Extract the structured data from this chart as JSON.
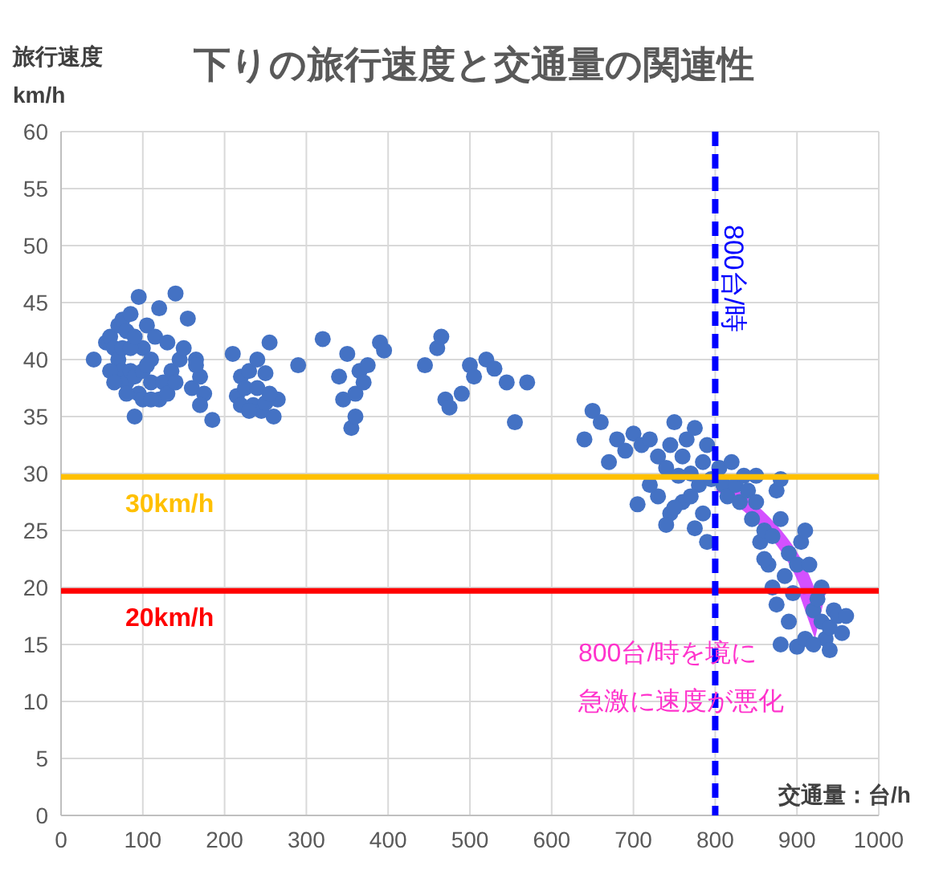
{
  "chart_data": {
    "type": "scatter",
    "title": "下りの旅行速度と交通量の関連性",
    "ylabel": "旅行速度\nkm/h",
    "xlabel": "交通量：台/h",
    "xlim": [
      0,
      1000
    ],
    "xticks": [
      0,
      100,
      200,
      300,
      400,
      500,
      600,
      700,
      800,
      900,
      1000
    ],
    "ylim": [
      0,
      60
    ],
    "yticks": [
      0,
      5,
      10,
      15,
      20,
      25,
      30,
      35,
      40,
      45,
      50,
      55,
      60
    ],
    "grid": true,
    "marker": "circle",
    "series": [
      {
        "color": "#4472c4",
        "x": [
          40,
          55,
          60,
          65,
          70,
          75,
          80,
          85,
          70,
          75,
          80,
          85,
          90,
          95,
          100,
          100,
          105,
          110,
          110,
          115,
          120,
          120,
          125,
          130,
          135,
          140,
          145,
          150,
          155,
          160,
          165,
          170,
          175,
          185,
          90,
          95,
          100,
          80,
          60,
          65,
          75,
          85,
          90,
          105,
          110,
          130,
          140,
          165,
          170,
          210,
          215,
          220,
          225,
          230,
          235,
          240,
          245,
          250,
          255,
          260,
          265,
          220,
          230,
          240,
          250,
          255,
          290,
          320,
          340,
          345,
          350,
          355,
          360,
          360,
          365,
          370,
          375,
          390,
          395,
          445,
          460,
          465,
          470,
          475,
          490,
          500,
          505,
          520,
          530,
          545,
          555,
          570,
          640,
          650,
          660,
          670,
          680,
          690,
          700,
          710,
          705,
          720,
          730,
          740,
          745,
          750,
          760,
          765,
          770,
          775,
          780,
          785,
          790,
          730,
          745,
          740,
          755,
          760,
          770,
          775,
          785,
          795,
          790,
          750,
          720,
          805,
          810,
          815,
          820,
          825,
          830,
          835,
          840,
          845,
          850,
          855,
          860,
          865,
          870,
          875,
          880,
          880,
          885,
          890,
          895,
          870,
          875,
          880,
          900,
          905,
          910,
          915,
          920,
          925,
          930,
          935,
          940,
          945,
          950,
          955,
          960,
          900,
          910,
          920,
          890,
          930,
          940,
          860,
          850
        ],
        "values": [
          40,
          41.5,
          42,
          41,
          43,
          43.5,
          42.5,
          44,
          40,
          39,
          38,
          39,
          38.5,
          45.5,
          41,
          39,
          43,
          40,
          38,
          42,
          44.5,
          36.5,
          38,
          41.5,
          39,
          45.8,
          40,
          41,
          43.6,
          37.5,
          40,
          38.5,
          37,
          34.7,
          35,
          37,
          36.5,
          37,
          39,
          38,
          41,
          41,
          42,
          39.5,
          36.5,
          37,
          38,
          39.5,
          36,
          40.5,
          36.8,
          38.5,
          37.5,
          39,
          36,
          37.5,
          35.5,
          38.8,
          41.5,
          35,
          36.5,
          36,
          35.5,
          40,
          36.2,
          37,
          39.5,
          41.8,
          38.5,
          36.5,
          40.5,
          34,
          35,
          37,
          39,
          38,
          39.5,
          41.5,
          40.8,
          39.5,
          41,
          42,
          36.5,
          35.8,
          37,
          39.5,
          38.5,
          40,
          39.2,
          38,
          34.5,
          38,
          33,
          35.5,
          34.5,
          31,
          33,
          32,
          33.5,
          32.5,
          27.3,
          33,
          31.5,
          30.5,
          32.5,
          34.5,
          31.5,
          33,
          30,
          34,
          29,
          31,
          32.5,
          28,
          26.5,
          25.5,
          29.8,
          27.5,
          28,
          25.2,
          26.5,
          29.5,
          24,
          27,
          29,
          30.5,
          29,
          28,
          31,
          29,
          27.5,
          29.8,
          28.5,
          26,
          27.5,
          24,
          25,
          22,
          24.5,
          28.5,
          29.5,
          26,
          21,
          23,
          19.5,
          20,
          18.5,
          15,
          22,
          24,
          25,
          22,
          18,
          19,
          17,
          15.5,
          16.5,
          18,
          17.5,
          16,
          17.5,
          14.8,
          15.5,
          15,
          17,
          20,
          14.5,
          22.5,
          29.8
        ]
      }
    ],
    "ref_lines": [
      {
        "axis": "y",
        "value": 29.7,
        "label": "30km/h",
        "color": "#ffc000",
        "line_style": "solid"
      },
      {
        "axis": "y",
        "value": 19.7,
        "label": "20km/h",
        "color": "#ff0000",
        "line_style": "solid"
      },
      {
        "axis": "x",
        "value": 800,
        "label": "800台/時",
        "color": "#0000ff",
        "line_style": "dashed"
      }
    ],
    "annotations": [
      "800台/時を境に",
      "急激に速度が悪化"
    ]
  }
}
